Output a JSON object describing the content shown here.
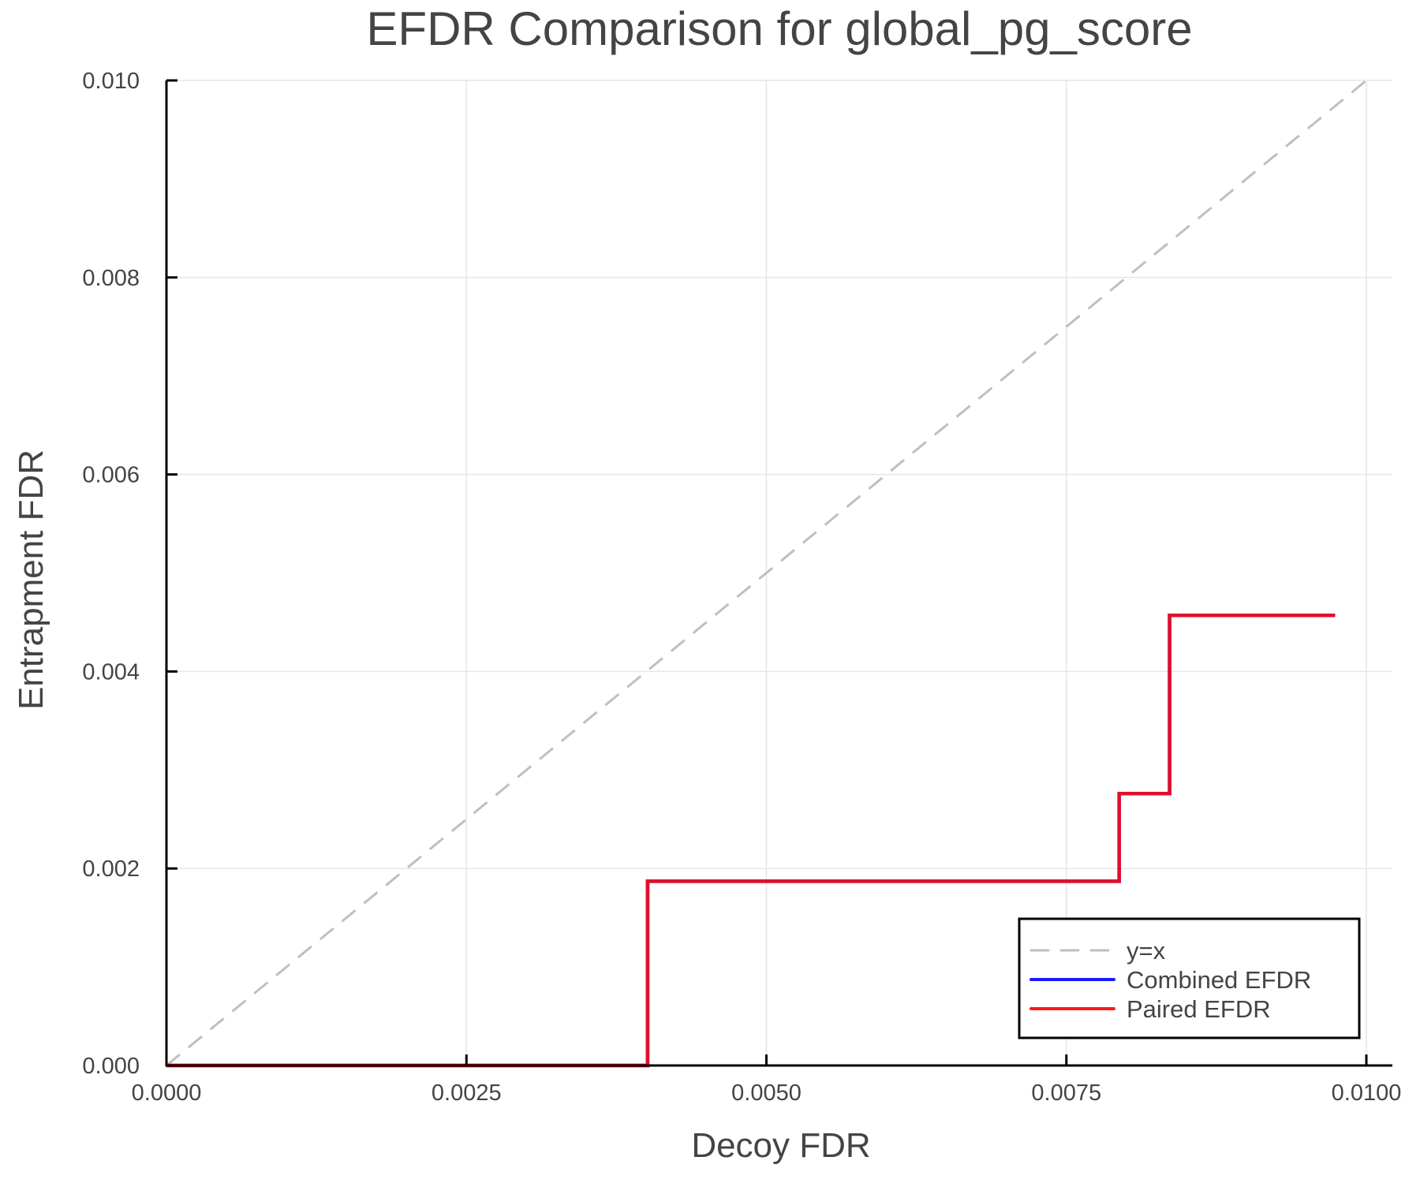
{
  "chart_data": {
    "type": "line",
    "title": "EFDR Comparison for global_pg_score",
    "xlabel": "Decoy FDR",
    "ylabel": "Entrapment FDR",
    "xlim": [
      0,
      0.0102
    ],
    "ylim": [
      0,
      0.01
    ],
    "xticks": [
      0,
      0.0025,
      0.005,
      0.0075,
      0.01
    ],
    "xtick_labels": [
      "0.0000",
      "0.0025",
      "0.0050",
      "0.0075",
      "0.0100"
    ],
    "yticks": [
      0,
      0.002,
      0.004,
      0.006,
      0.008,
      0.01
    ],
    "ytick_labels": [
      "0.000",
      "0.002",
      "0.004",
      "0.006",
      "0.008",
      "0.010"
    ],
    "grid": true,
    "legend_position": "bottom-right",
    "series": [
      {
        "name": "y=x",
        "style": "dashed",
        "color": "#bfbfbf",
        "x": [
          0,
          0.01
        ],
        "y": [
          0,
          0.01
        ]
      },
      {
        "name": "Combined EFDR",
        "style": "steps-post",
        "color": "#1a1aff",
        "x": [
          0,
          0.00401,
          0.00794,
          0.00836,
          0.00974
        ],
        "y": [
          0,
          0.00187,
          0.00276,
          0.00457,
          0.00457
        ]
      },
      {
        "name": "Paired EFDR",
        "style": "steps-post",
        "color": "#ff1a1a",
        "x": [
          0,
          0.00401,
          0.00794,
          0.00836,
          0.00974
        ],
        "y": [
          0,
          0.00187,
          0.00276,
          0.00457,
          0.00457
        ]
      }
    ]
  },
  "legend": {
    "items": [
      {
        "label": "y=x",
        "color": "#bfbfbf",
        "dashed": true
      },
      {
        "label": "Combined EFDR",
        "color": "#1a1aff",
        "dashed": false
      },
      {
        "label": "Paired EFDR",
        "color": "#ff1a1a",
        "dashed": false
      }
    ]
  }
}
